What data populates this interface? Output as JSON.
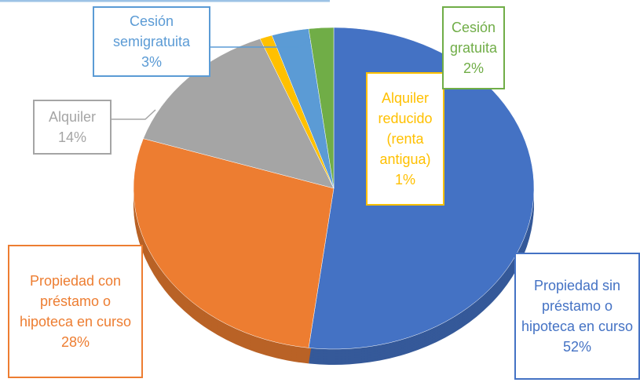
{
  "chart_data": {
    "type": "pie",
    "categories": [
      "Propiedad sin préstamo o hipoteca en curso",
      "Propiedad con préstamo o hipoteca en curso",
      "Alquiler",
      "Alquiler reducido (renta antigua)",
      "Cesión semigratuita",
      "Cesión gratuita"
    ],
    "values": [
      52,
      28,
      14,
      1,
      3,
      2
    ],
    "value_labels": [
      "52%",
      "28%",
      "14%",
      "1%",
      "3%",
      "2%"
    ],
    "colors": [
      "#4472c4",
      "#ed7d31",
      "#a5a5a5",
      "#ffc000",
      "#5b9bd5",
      "#70ad47"
    ]
  }
}
